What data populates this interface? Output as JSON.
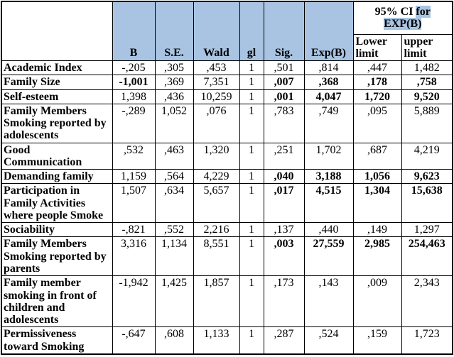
{
  "colors": {
    "header_fill": "#A8C4E2",
    "highlight": "#A8C4E2",
    "border": "#000000",
    "background": "#ffffff"
  },
  "header": {
    "ci_title_prefix": "95% CI ",
    "ci_title_highlight1": "for",
    "ci_title_highlight2": "EXP(B)",
    "columns": [
      "B",
      "S.E.",
      "Wald",
      "gl",
      "Sig.",
      "Exp(B)"
    ],
    "lower_limit": "Lower limit",
    "upper_limit": "upper limit"
  },
  "rows": [
    {
      "label": "Academic Index",
      "cells": [
        {
          "v": "-,205",
          "b": false
        },
        {
          "v": ",305",
          "b": false
        },
        {
          "v": ",453",
          "b": false
        },
        {
          "v": "1",
          "b": false
        },
        {
          "v": ",501",
          "b": false
        },
        {
          "v": ",814",
          "b": false
        },
        {
          "v": ",447",
          "b": false
        },
        {
          "v": "1,482",
          "b": false
        }
      ]
    },
    {
      "label": "Family Size",
      "cells": [
        {
          "v": "-1,001",
          "b": true
        },
        {
          "v": ",369",
          "b": false
        },
        {
          "v": "7,351",
          "b": false
        },
        {
          "v": "1",
          "b": false
        },
        {
          "v": ",007",
          "b": true
        },
        {
          "v": ",368",
          "b": true
        },
        {
          "v": ",178",
          "b": true
        },
        {
          "v": ",758",
          "b": true
        }
      ]
    },
    {
      "label": "Self-esteem",
      "cells": [
        {
          "v": "1,398",
          "b": false
        },
        {
          "v": ",436",
          "b": false
        },
        {
          "v": "10,259",
          "b": false
        },
        {
          "v": "1",
          "b": false
        },
        {
          "v": ",001",
          "b": true
        },
        {
          "v": "4,047",
          "b": true
        },
        {
          "v": "1,720",
          "b": true
        },
        {
          "v": "9,520",
          "b": true
        }
      ]
    },
    {
      "label": "Family Members\nSmoking reported by\nadolescents",
      "cells": [
        {
          "v": "-,289",
          "b": false
        },
        {
          "v": "1,052",
          "b": false
        },
        {
          "v": ",076",
          "b": false
        },
        {
          "v": "1",
          "b": false
        },
        {
          "v": ",783",
          "b": false
        },
        {
          "v": ",749",
          "b": false
        },
        {
          "v": ",095",
          "b": false
        },
        {
          "v": "5,889",
          "b": false
        }
      ]
    },
    {
      "label": "Good\nCommunication",
      "cells": [
        {
          "v": ",532",
          "b": false
        },
        {
          "v": ",463",
          "b": false
        },
        {
          "v": "1,320",
          "b": false
        },
        {
          "v": "1",
          "b": false
        },
        {
          "v": ",251",
          "b": false
        },
        {
          "v": "1,702",
          "b": false
        },
        {
          "v": ",687",
          "b": false
        },
        {
          "v": "4,219",
          "b": false
        }
      ]
    },
    {
      "label": "Demanding family",
      "cells": [
        {
          "v": "1,159",
          "b": false
        },
        {
          "v": ",564",
          "b": false
        },
        {
          "v": "4,229",
          "b": false
        },
        {
          "v": "1",
          "b": false
        },
        {
          "v": ",040",
          "b": true
        },
        {
          "v": "3,188",
          "b": true
        },
        {
          "v": "1,056",
          "b": true
        },
        {
          "v": "9,623",
          "b": true
        }
      ]
    },
    {
      "label": "Participation in\nFamily Activities\nwhere people Smoke",
      "cells": [
        {
          "v": "1,507",
          "b": false
        },
        {
          "v": ",634",
          "b": false
        },
        {
          "v": "5,657",
          "b": false
        },
        {
          "v": "1",
          "b": false
        },
        {
          "v": ",017",
          "b": true
        },
        {
          "v": "4,515",
          "b": true
        },
        {
          "v": "1,304",
          "b": true
        },
        {
          "v": "15,638",
          "b": true
        }
      ]
    },
    {
      "label": "Sociability",
      "cells": [
        {
          "v": "-,821",
          "b": false
        },
        {
          "v": ",552",
          "b": false
        },
        {
          "v": "2,216",
          "b": false
        },
        {
          "v": "1",
          "b": false
        },
        {
          "v": ",137",
          "b": false
        },
        {
          "v": ",440",
          "b": false
        },
        {
          "v": ",149",
          "b": false
        },
        {
          "v": "1,297",
          "b": false
        }
      ]
    },
    {
      "label": "Family Members\nSmoking reported by\nparents",
      "cells": [
        {
          "v": "3,316",
          "b": false
        },
        {
          "v": "1,134",
          "b": false
        },
        {
          "v": "8,551",
          "b": false
        },
        {
          "v": "1",
          "b": false
        },
        {
          "v": ",003",
          "b": true
        },
        {
          "v": "27,559",
          "b": true
        },
        {
          "v": "2,985",
          "b": true
        },
        {
          "v": "254,463",
          "b": true
        }
      ]
    },
    {
      "label": "Family member\nsmoking in front of\nchildren and\nadolescents",
      "cells": [
        {
          "v": "-1,942",
          "b": false
        },
        {
          "v": "1,425",
          "b": false
        },
        {
          "v": "1,857",
          "b": false
        },
        {
          "v": "1",
          "b": false
        },
        {
          "v": ",173",
          "b": false
        },
        {
          "v": ",143",
          "b": false
        },
        {
          "v": ",009",
          "b": false
        },
        {
          "v": "2,343",
          "b": false
        }
      ]
    },
    {
      "label": "Permissiveness\ntoward Smoking",
      "cells": [
        {
          "v": "-,647",
          "b": false
        },
        {
          "v": ",608",
          "b": false
        },
        {
          "v": "1,133",
          "b": false
        },
        {
          "v": "1",
          "b": false
        },
        {
          "v": ",287",
          "b": false
        },
        {
          "v": ",524",
          "b": false
        },
        {
          "v": ",159",
          "b": false
        },
        {
          "v": "1,723",
          "b": false
        }
      ]
    }
  ]
}
